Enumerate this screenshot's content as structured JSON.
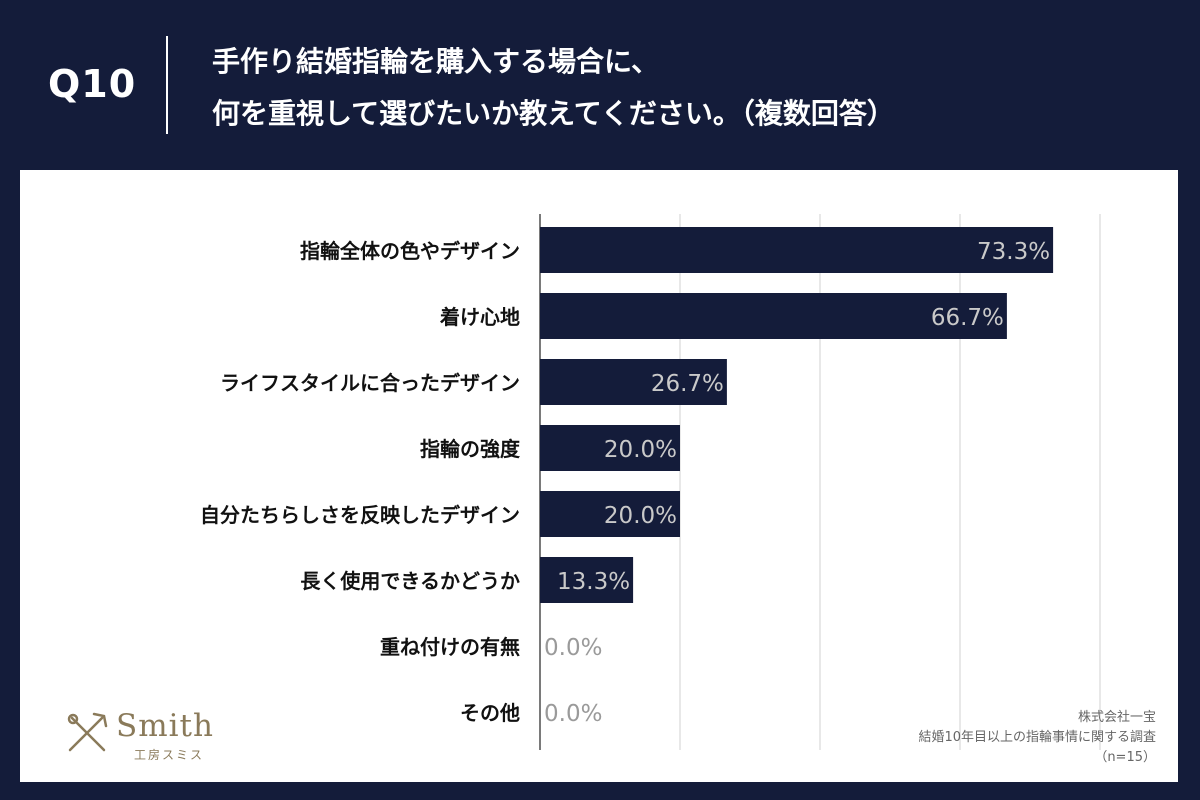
{
  "header": {
    "question_number": "Q10",
    "title_line1": "手作り結婚指輪を購入する場合に、",
    "title_line2": "何を重視して選びたいか教えてください。（複数回答）"
  },
  "logo": {
    "word": "Smith",
    "subtitle": "工房スミス",
    "icon": "crossed-tools-icon"
  },
  "source": {
    "line1": "株式会社一宝",
    "line2": "結婚10年目以上の指輪事情に関する調査",
    "line3": "（n=15）"
  },
  "colors": {
    "background": "#141c3a",
    "bar": "#141c3a",
    "bar_label": "#c9c9c9",
    "zero_label": "#9a9a9a",
    "grid": "#d0d0d0"
  },
  "chart_data": {
    "type": "bar",
    "orientation": "horizontal",
    "categories": [
      "指輪全体の色やデザイン",
      "着け心地",
      "ライフスタイルに合ったデザイン",
      "指輪の強度",
      "自分たちらしさを反映したデザイン",
      "長く使用できるかどうか",
      "重ね付けの有無",
      "その他"
    ],
    "values": [
      73.3,
      66.7,
      26.7,
      20.0,
      20.0,
      13.3,
      0.0,
      0.0
    ],
    "labels": [
      "73.3%",
      "66.7%",
      "26.7%",
      "20.0%",
      "20.0%",
      "13.3%",
      "0.0%",
      "0.0%"
    ],
    "xlim": [
      0,
      80
    ],
    "grid": true,
    "title": "",
    "xlabel": "",
    "ylabel": ""
  }
}
